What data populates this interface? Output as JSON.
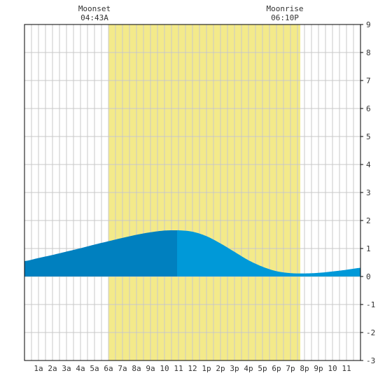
{
  "chart_data": {
    "type": "area",
    "x_unit": "hour",
    "xlim": [
      0,
      24
    ],
    "ylim": [
      -3,
      9
    ],
    "yticks": [
      -3,
      -2,
      -1,
      0,
      1,
      2,
      3,
      4,
      5,
      6,
      7,
      8,
      9
    ],
    "xticks": [
      {
        "x": 1,
        "label": "1a"
      },
      {
        "x": 2,
        "label": "2a"
      },
      {
        "x": 3,
        "label": "3a"
      },
      {
        "x": 4,
        "label": "4a"
      },
      {
        "x": 5,
        "label": "5a"
      },
      {
        "x": 6,
        "label": "6a"
      },
      {
        "x": 7,
        "label": "7a"
      },
      {
        "x": 8,
        "label": "8a"
      },
      {
        "x": 9,
        "label": "9a"
      },
      {
        "x": 10,
        "label": "10"
      },
      {
        "x": 11,
        "label": "11"
      },
      {
        "x": 12,
        "label": "12"
      },
      {
        "x": 13,
        "label": "1p"
      },
      {
        "x": 14,
        "label": "2p"
      },
      {
        "x": 15,
        "label": "3p"
      },
      {
        "x": 16,
        "label": "4p"
      },
      {
        "x": 17,
        "label": "5p"
      },
      {
        "x": 18,
        "label": "6p"
      },
      {
        "x": 19,
        "label": "7p"
      },
      {
        "x": 20,
        "label": "8p"
      },
      {
        "x": 21,
        "label": "9p"
      },
      {
        "x": 22,
        "label": "10"
      },
      {
        "x": 23,
        "label": "11"
      }
    ],
    "series": [
      {
        "x": [
          0,
          1,
          2,
          3,
          4,
          5,
          6,
          7,
          8,
          9,
          10,
          10.9,
          11,
          12,
          13,
          14,
          15,
          16,
          17,
          18,
          19,
          20,
          21,
          22,
          23,
          24
        ],
        "y": [
          0.55,
          0.66,
          0.77,
          0.89,
          1.01,
          1.14,
          1.26,
          1.38,
          1.49,
          1.58,
          1.64,
          1.65,
          1.65,
          1.6,
          1.44,
          1.18,
          0.88,
          0.58,
          0.35,
          0.19,
          0.12,
          0.11,
          0.13,
          0.18,
          0.24,
          0.31
        ]
      }
    ],
    "daylight": {
      "start": 6,
      "end": 19.7
    },
    "annotations": [
      {
        "x": 5.0,
        "title": "Moonset",
        "time": "04:43A"
      },
      {
        "x": 18.6,
        "title": "Moonrise",
        "time": "06:10P"
      }
    ],
    "now_split_x": 10.9,
    "grid": true,
    "colors": {
      "daylight": "#f3ea8a",
      "past_fill": "#0080bf",
      "future_fill": "#0099d8",
      "grid": "#c8c8c8",
      "axis": "#000000",
      "background": "#ffffff"
    }
  }
}
